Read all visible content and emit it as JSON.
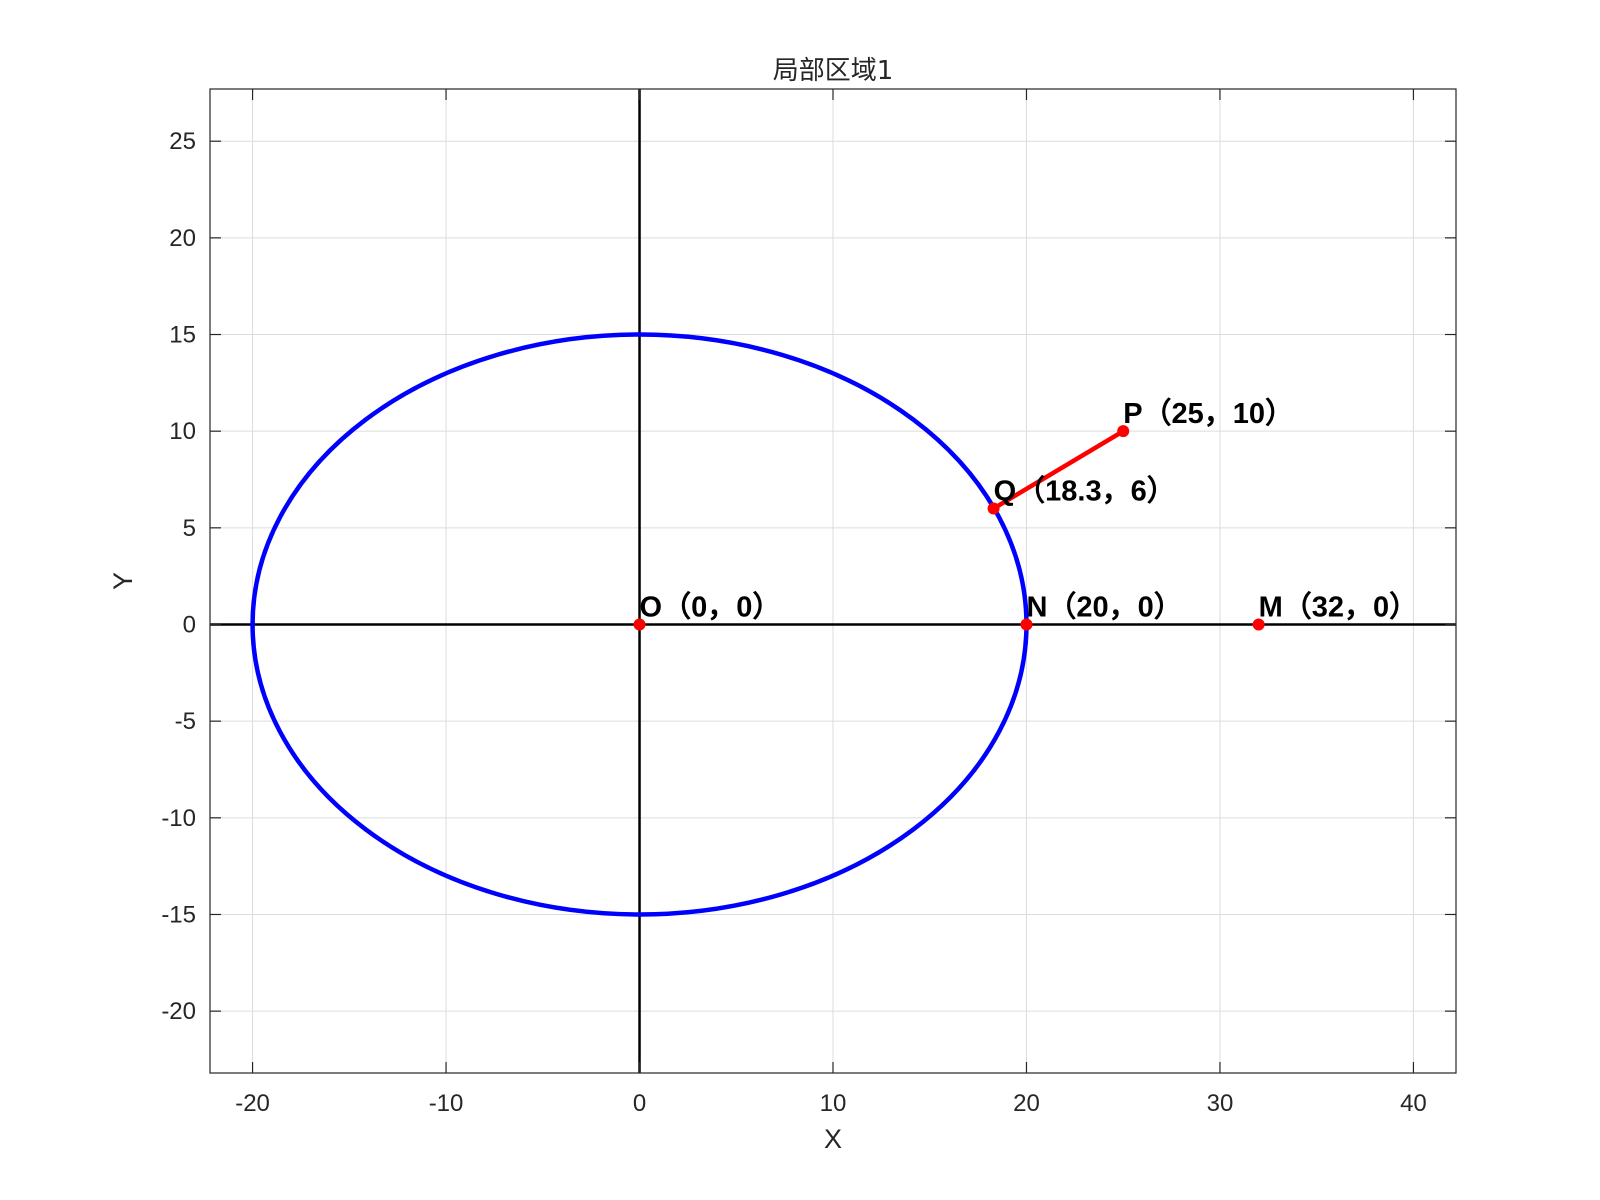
{
  "chart_data": {
    "type": "line",
    "title": "局部区域1",
    "xlabel": "X",
    "ylabel": "Y",
    "xlim": [
      -22.2,
      42.2
    ],
    "ylim": [
      -23.2,
      27.7
    ],
    "x_ticks": [
      -20,
      -10,
      0,
      10,
      20,
      30,
      40
    ],
    "y_ticks": [
      -20,
      -15,
      -10,
      -5,
      0,
      5,
      10,
      15,
      20,
      25
    ],
    "grid": true,
    "ellipse": {
      "center": [
        0,
        0
      ],
      "a": 20,
      "b": 15,
      "color": "#0000ff"
    },
    "axes_lines": {
      "x_axis_y": 0,
      "y_axis_x": 0,
      "color": "#000000"
    },
    "segments": [
      {
        "from": [
          18.3,
          6
        ],
        "to": [
          25,
          10
        ],
        "color": "#ff0000"
      }
    ],
    "points": [
      {
        "name": "O",
        "x": 0,
        "y": 0,
        "label": "O（0，0）"
      },
      {
        "name": "N",
        "x": 20,
        "y": 0,
        "label": "N（20，0）"
      },
      {
        "name": "M",
        "x": 32,
        "y": 0,
        "label": "M（32，0）"
      },
      {
        "name": "Q",
        "x": 18.3,
        "y": 6,
        "label": "Q（18.3，6）"
      },
      {
        "name": "P",
        "x": 25,
        "y": 10,
        "label": "P（25，10）"
      }
    ],
    "point_color": "#ff0000"
  }
}
